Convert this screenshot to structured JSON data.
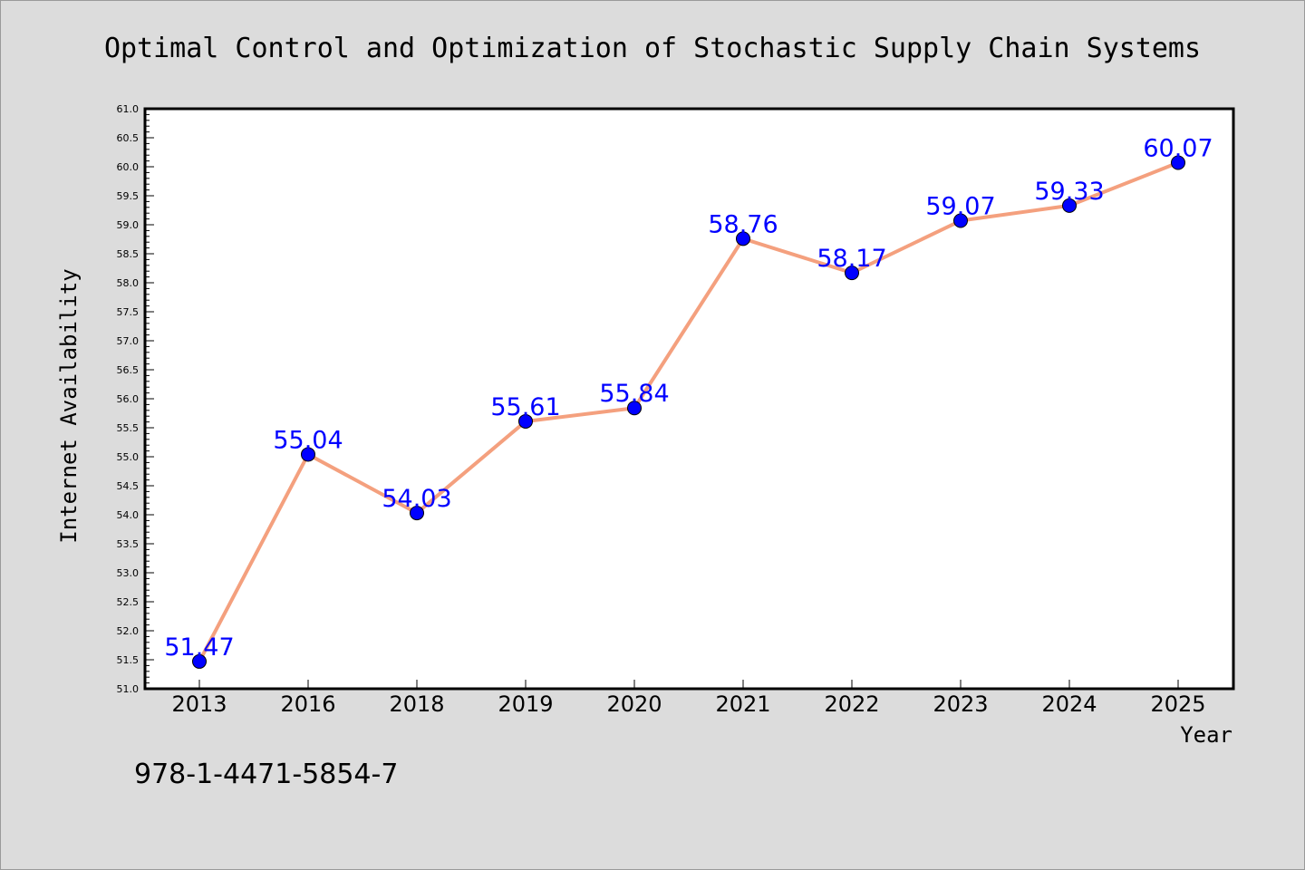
{
  "chart_data": {
    "type": "line",
    "title": "Optimal Control and Optimization of Stochastic Supply Chain Systems",
    "xlabel": "Year",
    "ylabel": "Internet Availability",
    "categories": [
      "2013",
      "2016",
      "2018",
      "2019",
      "2020",
      "2021",
      "2022",
      "2023",
      "2024",
      "2025"
    ],
    "values": [
      51.47,
      55.04,
      54.03,
      55.61,
      55.84,
      58.76,
      58.17,
      59.07,
      59.33,
      60.07
    ],
    "data_labels": [
      "51.47",
      "55.04",
      "54.03",
      "55.61",
      "55.84",
      "58.76",
      "58.17",
      "59.07",
      "59.33",
      "60.07"
    ],
    "ylim": [
      51.0,
      61.0
    ],
    "ytick_labels": [
      "51.0",
      "51.5",
      "52.0",
      "52.5",
      "53.0",
      "53.5",
      "54.0",
      "54.5",
      "55.0",
      "55.5",
      "56.0",
      "56.5",
      "57.0",
      "57.5",
      "58.0",
      "58.5",
      "59.0",
      "59.5",
      "60.0",
      "60.5",
      "61.0"
    ],
    "grid": false,
    "legend": "none",
    "colors": {
      "line": "#f4a07e",
      "marker": "#0000ff",
      "data_label": "#0000ff",
      "background": "#dcdcdc",
      "plot_background": "#ffffff"
    }
  },
  "footer": {
    "isbn": "978-1-4471-5854-7"
  }
}
